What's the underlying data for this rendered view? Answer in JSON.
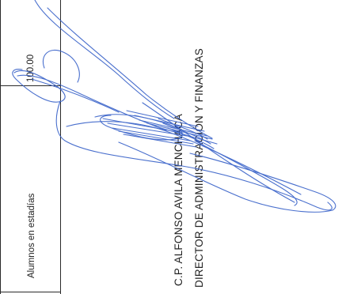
{
  "table": {
    "row_label": "Alumnos en estadías",
    "row_value": "100.00"
  },
  "signatory": {
    "name": "C.P. ALFONSO AVILA MENCHACA",
    "title": "DIRECTOR DE ADMINISTRACIÓN Y FINANZAS"
  },
  "colors": {
    "ink": "#3a63c9",
    "text": "#222222",
    "rules": "#2a2a2a"
  }
}
